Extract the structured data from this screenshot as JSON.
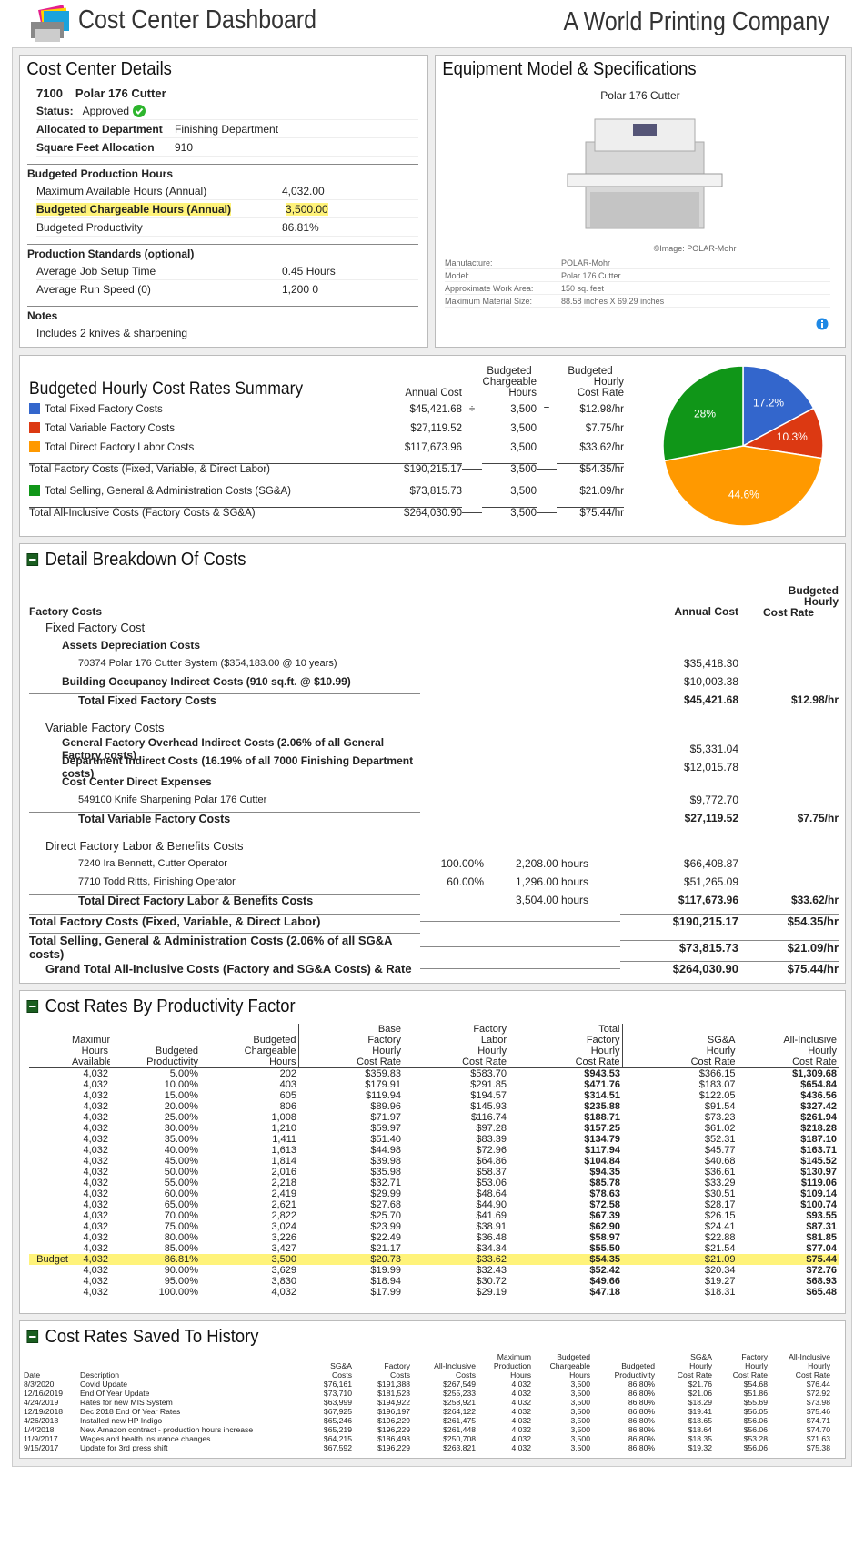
{
  "header": {
    "title": "Cost Center Dashboard",
    "company": "A World Printing Company"
  },
  "details": {
    "title": "Cost Center Details",
    "id": "7100",
    "name": "Polar 176 Cutter",
    "status": {
      "label": "Status:",
      "value": "Approved"
    },
    "info": [
      {
        "label": "Allocated to Department",
        "value": "Finishing Department"
      },
      {
        "label": "Square Feet Allocation",
        "value": "910"
      }
    ],
    "budget": {
      "heading": "Budgeted Production Hours",
      "rows": [
        {
          "label": "Maximum Available Hours (Annual)",
          "value": "4,032.00"
        },
        {
          "label": "Budgeted Chargeable Hours (Annual)",
          "value": "3,500.00",
          "highlight": true
        },
        {
          "label": "Budgeted Productivity",
          "value": "86.81%"
        }
      ]
    },
    "standards": {
      "heading": "Production Standards  (optional)",
      "rows": [
        {
          "label": "Average Job Setup Time",
          "value": "0.45 Hours"
        },
        {
          "label": "Average Run Speed  (0)",
          "value": "1,200 0"
        }
      ]
    },
    "notes": {
      "heading": "Notes",
      "text": "Includes 2 knives & sharpening"
    }
  },
  "equipment": {
    "title": "Equipment Model & Specifications",
    "caption": "Polar 176 Cutter",
    "credit": "©Image: POLAR-Mohr",
    "specs": [
      {
        "label": "Manufacture:",
        "value": "POLAR-Mohr"
      },
      {
        "label": "Model:",
        "value": "Polar 176 Cutter"
      },
      {
        "label": "Approximate Work Area:",
        "value": "150 sq. feet"
      },
      {
        "label": "Maximum Material Size:",
        "value": "88.58 inches X 69.29 inches"
      }
    ]
  },
  "summary": {
    "title": "Budgeted Hourly Cost Rates Summary",
    "headers": {
      "annual": [
        "Annual Cost"
      ],
      "hours": [
        "Budgeted",
        "Chargeable",
        "Hours"
      ],
      "rate": [
        "Budgeted",
        "Hourly",
        "Cost Rate"
      ]
    },
    "rows": [
      {
        "label": "Total Fixed Factory Costs",
        "annual": "$45,421.68",
        "op": "÷",
        "hours": "3,500",
        "eq": "=",
        "rate": "$12.98/hr"
      },
      {
        "label": "Total Variable Factory Costs",
        "annual": "$27,119.52",
        "hours": "3,500",
        "rate": "$7.75/hr"
      },
      {
        "label": "Total Direct Factory Labor Costs",
        "annual": "$117,673.96",
        "hours": "3,500",
        "rate": "$33.62/hr"
      },
      {
        "label": "Total Factory Costs (Fixed, Variable, & Direct Labor)",
        "annual": "$190,215.17",
        "hours": "3,500",
        "rate": "$54.35/hr"
      },
      {
        "label": "Total Selling, General & Administration Costs (SG&A)",
        "annual": "$73,815.73",
        "hours": "3,500",
        "rate": "$21.09/hr"
      },
      {
        "label": "Total All-Inclusive Costs (Factory Costs & SG&A)",
        "annual": "$264,030.90",
        "hours": "3,500",
        "rate": "$75.44/hr"
      }
    ]
  },
  "chart_data": {
    "type": "pie",
    "values": [
      17.2,
      10.3,
      44.6,
      28
    ],
    "value_labels": [
      "17.2%",
      "10.3%",
      "44.6%",
      "28%"
    ],
    "colors": [
      "#3366cc",
      "#dc3912",
      "#ff9900",
      "#109618"
    ]
  },
  "breakdown": {
    "title": "Detail Breakdown Of Costs",
    "section_label": "Factory Costs",
    "headers": {
      "annual": "Annual Cost",
      "rate": [
        "Budgeted",
        "Hourly",
        "Cost Rate"
      ]
    },
    "groups": [
      {
        "title": "Fixed Factory Cost",
        "items": [
          {
            "title": "Assets Depreciation Costs",
            "items": [
              {
                "text": "70374 Polar 176 Cutter System  ($354,183.00 @ 10 years)",
                "annual": "$35,418.30"
              }
            ]
          },
          {
            "title": "Building Occupancy Indirect Costs (910 sq.ft. @ $10.99)",
            "annual": "$10,003.38"
          }
        ],
        "total": {
          "text": "Total Fixed Factory Costs",
          "annual": "$45,421.68",
          "rate": "$12.98/hr"
        }
      },
      {
        "title": "Variable Factory Costs",
        "items": [
          {
            "title": "General Factory Overhead Indirect Costs (2.06% of all General Factory costs)",
            "annual": "$5,331.04"
          },
          {
            "title": "Department Indirect Costs (16.19% of all 7000 Finishing Department costs)",
            "annual": "$12,015.78"
          },
          {
            "title": "Cost Center Direct Expenses",
            "items": [
              {
                "text": "549100 Knife Sharpening Polar 176 Cutter",
                "annual": "$9,772.70"
              }
            ]
          }
        ],
        "total": {
          "text": "Total Variable Factory Costs",
          "annual": "$27,119.52",
          "rate": "$7.75/hr"
        }
      },
      {
        "title": "Direct Factory Labor & Benefits Costs",
        "items": [
          {
            "text": "7240 Ira Bennett, Cutter Operator",
            "pct": "100.00%",
            "hours": "2,208.00 hours",
            "annual": "$66,408.87"
          },
          {
            "text": "7710 Todd Ritts, Finishing Operator",
            "pct": "60.00%",
            "hours": "1,296.00 hours",
            "annual": "$51,265.09"
          }
        ],
        "total": {
          "text": "Total Direct Factory Labor & Benefits Costs",
          "hours": "3,504.00 hours",
          "annual": "$117,673.96",
          "rate": "$33.62/hr"
        }
      }
    ],
    "totals": [
      {
        "text": "Total Factory Costs (Fixed, Variable, & Direct Labor)",
        "annual": "$190,215.17",
        "rate": "$54.35/hr"
      },
      {
        "text": "Total Selling, General & Administration Costs (2.06% of all SG&A costs)",
        "annual": "$73,815.73",
        "rate": "$21.09/hr"
      },
      {
        "text": "Grand Total All-Inclusive Costs (Factory and SG&A Costs) & Rate",
        "annual": "$264,030.90",
        "rate": "$75.44/hr"
      }
    ]
  },
  "productivity": {
    "title": "Cost Rates By Productivity Factor",
    "headers": [
      [
        "Maximum",
        "Hours",
        "Available"
      ],
      [
        "Budgeted",
        "Productivity"
      ],
      [
        "Budgeted",
        "Chargeable",
        "Hours"
      ],
      [
        "Base",
        "Factory",
        "Hourly",
        "Cost Rate"
      ],
      [
        "Factory",
        "Labor",
        "Hourly",
        "Cost Rate"
      ],
      [
        "Total",
        "Factory",
        "Hourly",
        "Cost Rate"
      ],
      [
        "SG&A",
        "Hourly",
        "Cost Rate"
      ],
      [
        "All-Inclusive",
        "Hourly",
        "Cost Rate"
      ]
    ],
    "rows": [
      {
        "cells": [
          "4,032",
          "5.00%",
          "202",
          "$359.83",
          "$583.70",
          "$943.53",
          "$366.15",
          "$1,309.68"
        ]
      },
      {
        "cells": [
          "4,032",
          "10.00%",
          "403",
          "$179.91",
          "$291.85",
          "$471.76",
          "$183.07",
          "$654.84"
        ]
      },
      {
        "cells": [
          "4,032",
          "15.00%",
          "605",
          "$119.94",
          "$194.57",
          "$314.51",
          "$122.05",
          "$436.56"
        ]
      },
      {
        "cells": [
          "4,032",
          "20.00%",
          "806",
          "$89.96",
          "$145.93",
          "$235.88",
          "$91.54",
          "$327.42"
        ]
      },
      {
        "cells": [
          "4,032",
          "25.00%",
          "1,008",
          "$71.97",
          "$116.74",
          "$188.71",
          "$73.23",
          "$261.94"
        ]
      },
      {
        "cells": [
          "4,032",
          "30.00%",
          "1,210",
          "$59.97",
          "$97.28",
          "$157.25",
          "$61.02",
          "$218.28"
        ]
      },
      {
        "cells": [
          "4,032",
          "35.00%",
          "1,411",
          "$51.40",
          "$83.39",
          "$134.79",
          "$52.31",
          "$187.10"
        ]
      },
      {
        "cells": [
          "4,032",
          "40.00%",
          "1,613",
          "$44.98",
          "$72.96",
          "$117.94",
          "$45.77",
          "$163.71"
        ]
      },
      {
        "cells": [
          "4,032",
          "45.00%",
          "1,814",
          "$39.98",
          "$64.86",
          "$104.84",
          "$40.68",
          "$145.52"
        ]
      },
      {
        "cells": [
          "4,032",
          "50.00%",
          "2,016",
          "$35.98",
          "$58.37",
          "$94.35",
          "$36.61",
          "$130.97"
        ]
      },
      {
        "cells": [
          "4,032",
          "55.00%",
          "2,218",
          "$32.71",
          "$53.06",
          "$85.78",
          "$33.29",
          "$119.06"
        ]
      },
      {
        "cells": [
          "4,032",
          "60.00%",
          "2,419",
          "$29.99",
          "$48.64",
          "$78.63",
          "$30.51",
          "$109.14"
        ]
      },
      {
        "cells": [
          "4,032",
          "65.00%",
          "2,621",
          "$27.68",
          "$44.90",
          "$72.58",
          "$28.17",
          "$100.74"
        ]
      },
      {
        "cells": [
          "4,032",
          "70.00%",
          "2,822",
          "$25.70",
          "$41.69",
          "$67.39",
          "$26.15",
          "$93.55"
        ]
      },
      {
        "cells": [
          "4,032",
          "75.00%",
          "3,024",
          "$23.99",
          "$38.91",
          "$62.90",
          "$24.41",
          "$87.31"
        ]
      },
      {
        "cells": [
          "4,032",
          "80.00%",
          "3,226",
          "$22.49",
          "$36.48",
          "$58.97",
          "$22.88",
          "$81.85"
        ]
      },
      {
        "cells": [
          "4,032",
          "85.00%",
          "3,427",
          "$21.17",
          "$34.34",
          "$55.50",
          "$21.54",
          "$77.04"
        ]
      },
      {
        "label": "Budget",
        "cells": [
          "4,032",
          "86.81%",
          "3,500",
          "$20.73",
          "$33.62",
          "$54.35",
          "$21.09",
          "$75.44"
        ]
      },
      {
        "cells": [
          "4,032",
          "90.00%",
          "3,629",
          "$19.99",
          "$32.43",
          "$52.42",
          "$20.34",
          "$72.76"
        ]
      },
      {
        "cells": [
          "4,032",
          "95.00%",
          "3,830",
          "$18.94",
          "$30.72",
          "$49.66",
          "$19.27",
          "$68.93"
        ]
      },
      {
        "cells": [
          "4,032",
          "100.00%",
          "4,032",
          "$17.99",
          "$29.19",
          "$47.18",
          "$18.31",
          "$65.48"
        ]
      }
    ]
  },
  "history": {
    "title": "Cost Rates Saved To History",
    "headers": [
      [
        "Date"
      ],
      [
        "Description"
      ],
      [
        "SG&A",
        "Costs"
      ],
      [
        "Factory",
        "Costs"
      ],
      [
        "All-Inclusive",
        "Costs"
      ],
      [
        "Maximum",
        "Production",
        "Hours"
      ],
      [
        "Budgeted",
        "Chargeable",
        "Hours"
      ],
      [
        "Budgeted",
        "Productivity"
      ],
      [
        "SG&A",
        "Hourly",
        "Cost Rate"
      ],
      [
        "Factory",
        "Hourly",
        "Cost Rate"
      ],
      [
        "All-Inclusive",
        "Hourly",
        "Cost Rate"
      ]
    ],
    "rows": [
      [
        "8/3/2020",
        "Covid Update",
        "$76,161",
        "$191,388",
        "$267,549",
        "4,032",
        "3,500",
        "86.80%",
        "$21.76",
        "$54.68",
        "$76.44"
      ],
      [
        "12/16/2019",
        "End Of Year Update",
        "$73,710",
        "$181,523",
        "$255,233",
        "4,032",
        "3,500",
        "86.80%",
        "$21.06",
        "$51.86",
        "$72.92"
      ],
      [
        "4/24/2019",
        "Rates for new MIS System",
        "$63,999",
        "$194,922",
        "$258,921",
        "4,032",
        "3,500",
        "86.80%",
        "$18.29",
        "$55.69",
        "$73.98"
      ],
      [
        "12/19/2018",
        "Dec 2018 End Of Year Rates",
        "$67,925",
        "$196,197",
        "$264,122",
        "4,032",
        "3,500",
        "86.80%",
        "$19.41",
        "$56.05",
        "$75.46"
      ],
      [
        "4/26/2018",
        "Installed new HP Indigo",
        "$65,246",
        "$196,229",
        "$261,475",
        "4,032",
        "3,500",
        "86.80%",
        "$18.65",
        "$56.06",
        "$74.71"
      ],
      [
        "1/4/2018",
        "New Amazon contract - production hours increase",
        "$65,219",
        "$196,229",
        "$261,448",
        "4,032",
        "3,500",
        "86.80%",
        "$18.64",
        "$56.06",
        "$74.70"
      ],
      [
        "11/9/2017",
        "Wages and health insurance changes",
        "$64,215",
        "$186,493",
        "$250,708",
        "4,032",
        "3,500",
        "86.80%",
        "$18.35",
        "$53.28",
        "$71.63"
      ],
      [
        "9/15/2017",
        "Update for 3rd press shift",
        "$67,592",
        "$196,229",
        "$263,821",
        "4,032",
        "3,500",
        "86.80%",
        "$19.32",
        "$56.06",
        "$75.38"
      ]
    ]
  }
}
